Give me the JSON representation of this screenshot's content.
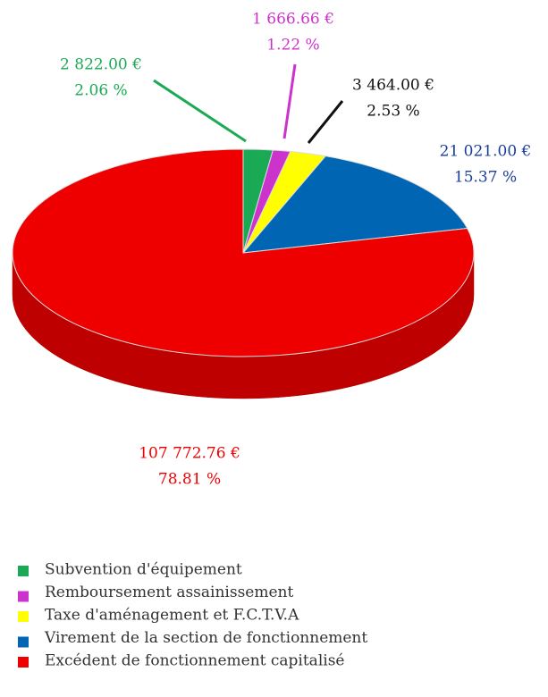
{
  "chart_data": {
    "type": "pie",
    "categories": [
      "Subvention d'équipement",
      "Remboursement assainissement",
      "Taxe d'aménagement et F.C.T.V.A",
      "Virement de la section de fonctionnement",
      "Excédent de fonctionnement capitalisé"
    ],
    "values": [
      2822.0,
      1666.66,
      3464.0,
      21021.0,
      107772.76
    ],
    "value_labels": [
      "2 822.00 €",
      "1 666.66 €",
      "3 464.00 €",
      "21 021.00 €",
      "107 772.76 €"
    ],
    "percentages": [
      2.06,
      1.22,
      2.53,
      15.37,
      78.81
    ],
    "percentage_labels": [
      "2.06 %",
      "1.22 %",
      "2.53 %",
      "15.37 %",
      "78.81 %"
    ],
    "colors": [
      "#1aaa55",
      "#cc33cc",
      "#ffff00",
      "#0066b3",
      "#ee0000"
    ],
    "label_colors": [
      "#1aaa55",
      "#cc33cc",
      "#111111",
      "#1a3f99",
      "#ee0000"
    ]
  }
}
